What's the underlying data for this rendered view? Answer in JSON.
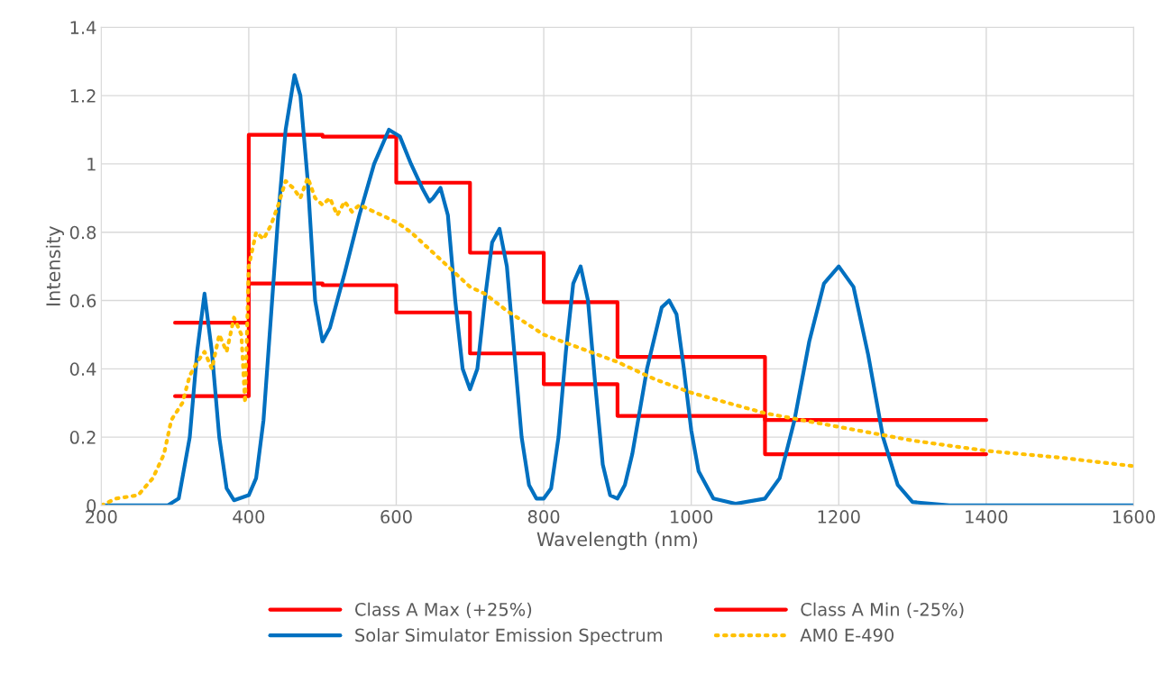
{
  "chart_data": {
    "type": "line",
    "xlabel": "Wavelength (nm)",
    "ylabel": "Intensity",
    "xlim": [
      200,
      1600
    ],
    "xticks": [
      200,
      400,
      600,
      800,
      1000,
      1200,
      1400,
      1600
    ],
    "ylim": [
      0,
      1.4
    ],
    "yticks": [
      0,
      0.2,
      0.4,
      0.6,
      0.8,
      1,
      1.2,
      1.4
    ],
    "grid": true,
    "legend": "bottom",
    "marker": "none",
    "series": [
      {
        "name": "Class A Max (+25%)",
        "type": "step",
        "color": "#ff0000",
        "line_style": "solid",
        "x": [
          300,
          400,
          500,
          600,
          700,
          800,
          900,
          1100,
          1400
        ],
        "values": [
          0.535,
          1.085,
          1.08,
          0.945,
          0.74,
          0.595,
          0.435,
          0.25,
          0.25
        ]
      },
      {
        "name": "Class A Min (-25%)",
        "type": "step",
        "color": "#ff0000",
        "line_style": "solid",
        "x": [
          300,
          400,
          500,
          600,
          700,
          800,
          900,
          1100,
          1400
        ],
        "values": [
          0.32,
          0.65,
          0.645,
          0.565,
          0.445,
          0.355,
          0.262,
          0.15,
          0.15
        ]
      },
      {
        "name": "Solar Simulator Emission Spectrum",
        "color": "#0070c0",
        "line_style": "solid",
        "x": [
          200,
          290,
          305,
          320,
          330,
          340,
          350,
          360,
          370,
          380,
          400,
          410,
          420,
          430,
          440,
          450,
          462,
          470,
          480,
          490,
          500,
          510,
          530,
          550,
          570,
          590,
          605,
          620,
          635,
          645,
          650,
          660,
          670,
          680,
          690,
          700,
          710,
          720,
          730,
          740,
          750,
          760,
          770,
          780,
          790,
          800,
          810,
          820,
          830,
          840,
          850,
          860,
          870,
          880,
          890,
          900,
          910,
          920,
          940,
          960,
          970,
          980,
          990,
          1000,
          1010,
          1030,
          1060,
          1100,
          1120,
          1140,
          1160,
          1180,
          1200,
          1220,
          1240,
          1260,
          1280,
          1300,
          1350,
          1600
        ],
        "values": [
          0,
          0,
          0.02,
          0.2,
          0.45,
          0.62,
          0.45,
          0.2,
          0.05,
          0.015,
          0.03,
          0.08,
          0.25,
          0.55,
          0.85,
          1.1,
          1.26,
          1.2,
          0.95,
          0.6,
          0.48,
          0.52,
          0.68,
          0.85,
          1.0,
          1.1,
          1.08,
          1.0,
          0.93,
          0.89,
          0.9,
          0.93,
          0.85,
          0.6,
          0.4,
          0.34,
          0.4,
          0.6,
          0.77,
          0.81,
          0.7,
          0.45,
          0.2,
          0.06,
          0.02,
          0.02,
          0.05,
          0.2,
          0.45,
          0.65,
          0.7,
          0.6,
          0.35,
          0.12,
          0.03,
          0.02,
          0.06,
          0.15,
          0.4,
          0.58,
          0.6,
          0.56,
          0.4,
          0.22,
          0.1,
          0.02,
          0.005,
          0.02,
          0.08,
          0.25,
          0.48,
          0.65,
          0.7,
          0.64,
          0.44,
          0.2,
          0.06,
          0.01,
          0,
          0
        ]
      },
      {
        "name": "AM0 E-490",
        "color": "#ffc000",
        "line_style": "dotted",
        "x": [
          200,
          220,
          250,
          270,
          285,
          295,
          310,
          320,
          330,
          340,
          350,
          360,
          370,
          380,
          390,
          395,
          400,
          410,
          420,
          430,
          440,
          450,
          460,
          470,
          480,
          490,
          500,
          510,
          520,
          530,
          540,
          550,
          560,
          580,
          600,
          620,
          640,
          660,
          680,
          700,
          720,
          750,
          800,
          850,
          900,
          950,
          1000,
          1050,
          1100,
          1200,
          1300,
          1400,
          1500,
          1600
        ],
        "values": [
          0,
          0.02,
          0.03,
          0.08,
          0.15,
          0.25,
          0.3,
          0.38,
          0.42,
          0.45,
          0.4,
          0.5,
          0.45,
          0.55,
          0.5,
          0.3,
          0.7,
          0.8,
          0.78,
          0.82,
          0.88,
          0.95,
          0.93,
          0.9,
          0.96,
          0.9,
          0.88,
          0.9,
          0.85,
          0.89,
          0.86,
          0.88,
          0.87,
          0.85,
          0.83,
          0.8,
          0.76,
          0.72,
          0.68,
          0.64,
          0.62,
          0.57,
          0.5,
          0.46,
          0.42,
          0.37,
          0.33,
          0.3,
          0.27,
          0.23,
          0.19,
          0.16,
          0.14,
          0.115
        ]
      }
    ]
  }
}
